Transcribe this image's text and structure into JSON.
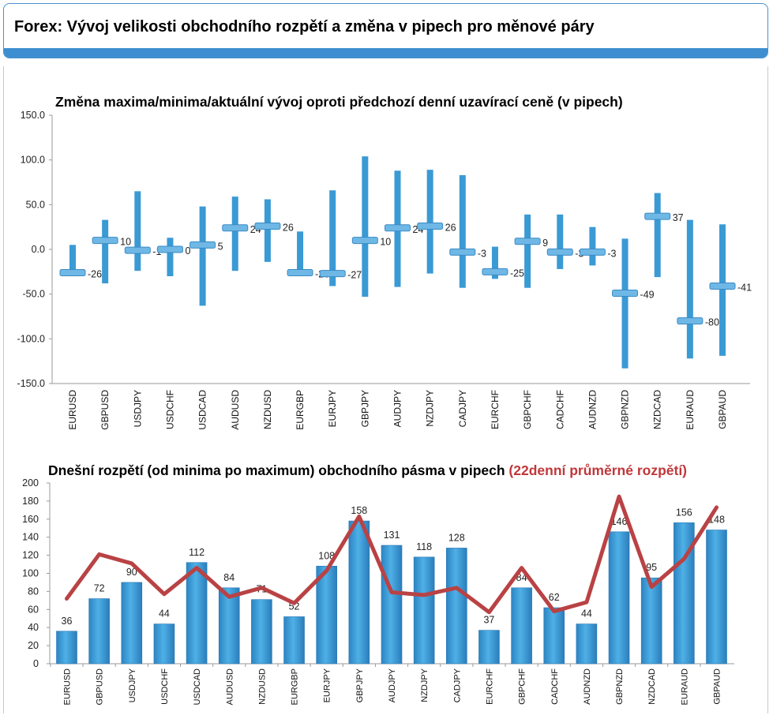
{
  "header": {
    "title": "Forex: Vývoj velikosti obchodního rozpětí a změna v pipech pro měnové páry"
  },
  "chart_data": [
    {
      "type": "range",
      "title": "Změna maxima/minima/aktuální vývoj oproti předchozí denní uzavírací ceně (v pipech)",
      "categories": [
        "EURUSD",
        "GBPUSD",
        "USDJPY",
        "USDCHF",
        "USDCAD",
        "AUDUSD",
        "NZDUSD",
        "EURGBP",
        "EURJPY",
        "GBPJPY",
        "AUDJPY",
        "NZDJPY",
        "CADJPY",
        "EURCHF",
        "GBPCHF",
        "CADCHF",
        "AUDNZD",
        "GBPNZD",
        "NZDCAD",
        "EURAUD",
        "GBPAUD"
      ],
      "series": [
        {
          "values_high": [
            5,
            33,
            65,
            13,
            48,
            59,
            56,
            20,
            66,
            104,
            88,
            89,
            83,
            3,
            39,
            39,
            25,
            12,
            63,
            33,
            28
          ]
        },
        {
          "values_low": [
            -30,
            -38,
            -24,
            -30,
            -63,
            -24,
            -14,
            -30,
            -41,
            -53,
            -42,
            -27,
            -43,
            -33,
            -43,
            -22,
            -18,
            -133,
            -31,
            -122,
            -119
          ]
        },
        {
          "current": [
            -26,
            10,
            -1,
            0,
            5,
            24,
            26,
            -26,
            -27,
            10,
            24,
            26,
            -3,
            -25,
            9,
            -3,
            -3,
            -49,
            37,
            -80,
            -41
          ]
        }
      ],
      "current_labels": [
        "-26",
        "10",
        "-1",
        "0",
        "5",
        "24",
        "26",
        "-26",
        "-27",
        "10",
        "24",
        "26",
        "-3",
        "-25",
        "9",
        "-3",
        "-3",
        "-49",
        "37",
        "-80",
        "-41"
      ],
      "ylim": [
        -150,
        150
      ],
      "yticks": [
        "150.0",
        "100.0",
        "50.0",
        "0.0",
        "-50.0",
        "-100.0",
        "-150.0"
      ],
      "grid": false,
      "colors": {
        "bar": "#3a9ad4",
        "marker": "#6fb8e6"
      }
    },
    {
      "type": "bar",
      "title": "Dnešní rozpětí (od minima po maximum) obchodního pásma v pipech",
      "title_suffix": "(22denní průměrné rozpětí)",
      "categories": [
        "EURUSD",
        "GBPUSD",
        "USDJPY",
        "USDCHF",
        "USDCAD",
        "AUDUSD",
        "NZDUSD",
        "EURGBP",
        "EURJPY",
        "GBPJPY",
        "AUDJPY",
        "NZDJPY",
        "CADJPY",
        "EURCHF",
        "GBPCHF",
        "CADCHF",
        "AUDNZD",
        "GBPNZD",
        "NZDCAD",
        "EURAUD",
        "GBPAUD"
      ],
      "series": [
        {
          "type": "bar",
          "values": [
            36,
            72,
            90,
            44,
            112,
            84,
            71,
            52,
            108,
            158,
            131,
            118,
            128,
            37,
            84,
            62,
            44,
            146,
            95,
            156,
            148
          ]
        },
        {
          "type": "line",
          "values": [
            72,
            121,
            111,
            77,
            106,
            74,
            84,
            67,
            103,
            163,
            79,
            76,
            84,
            57,
            106,
            58,
            68,
            185,
            85,
            116,
            173
          ]
        }
      ],
      "ylim": [
        0,
        200
      ],
      "yticks": [
        "0",
        "20",
        "40",
        "60",
        "80",
        "100",
        "120",
        "140",
        "160",
        "180",
        "200"
      ],
      "grid": false,
      "colors": {
        "bar": "#3a9ad4",
        "line": "#b94244",
        "title_suffix": "#c0373a"
      }
    }
  ]
}
